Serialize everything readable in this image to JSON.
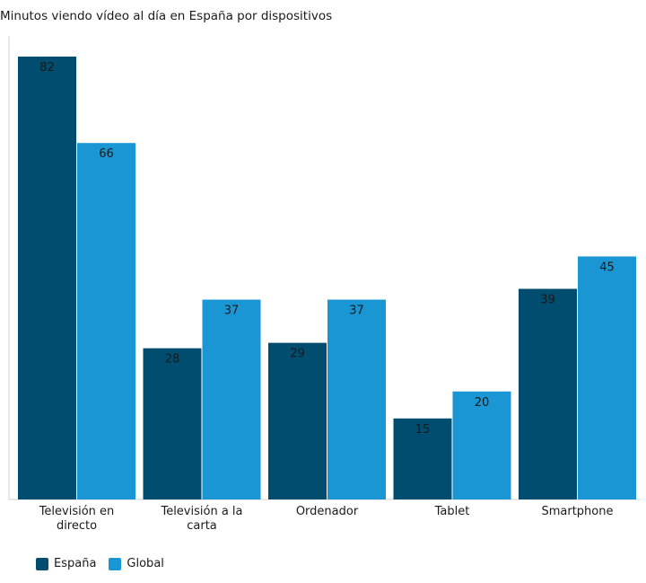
{
  "chart_data": {
    "type": "bar",
    "title": "Minutos viendo vídeo al día en España por dispositivos",
    "categories": [
      [
        "Televisión en",
        "directo"
      ],
      [
        "Televisión a la",
        "carta"
      ],
      [
        "Ordenador"
      ],
      [
        "Tablet"
      ],
      [
        "Smartphone"
      ]
    ],
    "series": [
      {
        "name": "España",
        "color": "#004d70",
        "values": [
          82,
          28,
          29,
          15,
          39
        ]
      },
      {
        "name": "Global",
        "color": "#1b96d4",
        "values": [
          66,
          37,
          37,
          20,
          45
        ]
      }
    ],
    "xlabel": "",
    "ylabel": "",
    "ylim": [
      0,
      83.5
    ],
    "grid": false,
    "legend_position": "bottom-left",
    "data_labels": true
  }
}
